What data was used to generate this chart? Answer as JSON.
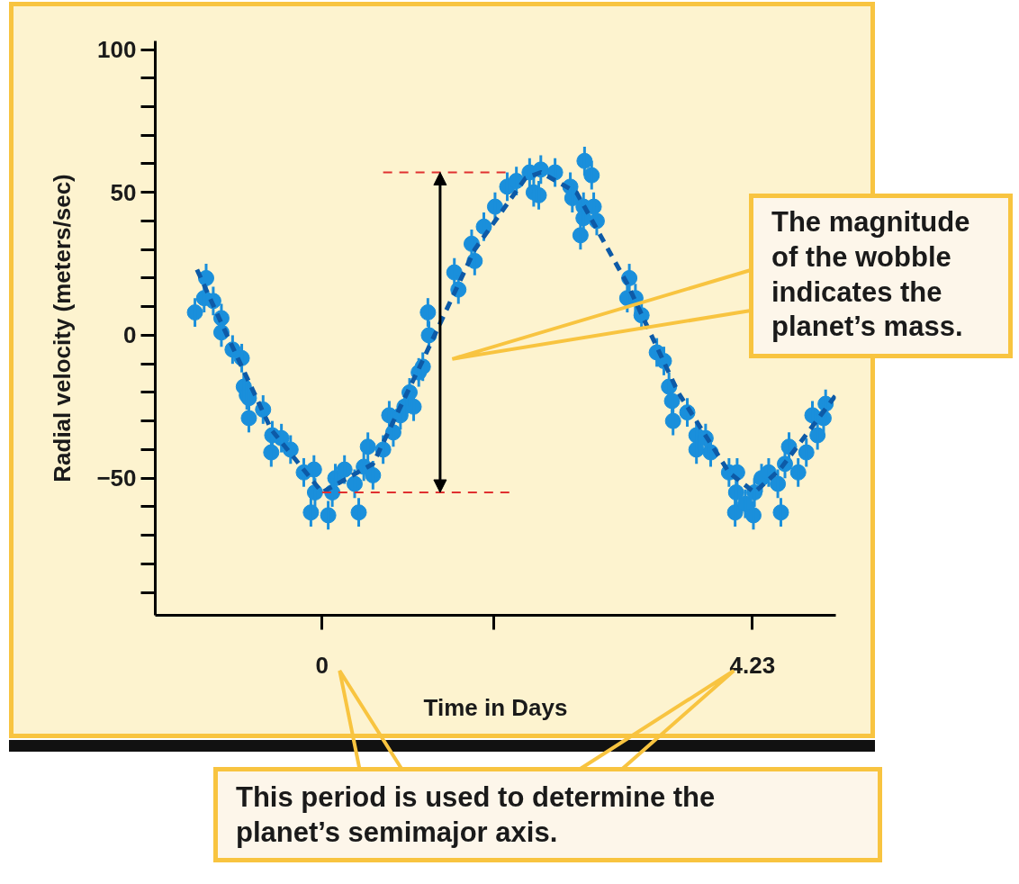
{
  "chart_data": {
    "type": "scatter",
    "xlabel": "Time in Days",
    "ylabel": "Radial velocity (meters/sec)",
    "xlim": [
      -1.64,
      5.05
    ],
    "ylim": [
      -98,
      103
    ],
    "xticks": [
      0,
      {
        "value": 1.69,
        "label": null
      },
      4.23
    ],
    "yticks": [
      100,
      {
        "value": 90,
        "label": null
      },
      {
        "value": 80,
        "label": null
      },
      {
        "value": 70,
        "label": null
      },
      {
        "value": 60,
        "label": null
      },
      50,
      {
        "value": 40,
        "label": null
      },
      {
        "value": 30,
        "label": null
      },
      {
        "value": 20,
        "label": null
      },
      {
        "value": 10,
        "label": null
      },
      0,
      {
        "value": -10,
        "label": null
      },
      {
        "value": -20,
        "label": null
      },
      {
        "value": -30,
        "label": null
      },
      {
        "value": -40,
        "label": null
      },
      {
        "value": -50,
        "label": "−50"
      },
      {
        "value": -60,
        "label": null
      },
      {
        "value": -70,
        "label": null
      },
      {
        "value": -80,
        "label": null
      },
      {
        "value": -90,
        "label": null
      }
    ],
    "grid": false,
    "series": [
      {
        "marker": "circle",
        "color": "#1a8fdb",
        "x": [
          -1.25,
          -1.16,
          -1.14,
          -1.07,
          -0.99,
          -0.99,
          -0.88,
          -0.79,
          -0.77,
          -0.74,
          -0.72,
          -0.72,
          -0.58,
          -0.5,
          -0.49,
          -0.4,
          -0.31,
          -0.18,
          -0.08,
          -0.07,
          -0.11,
          0.06,
          0.1,
          0.13,
          0.22,
          0.32,
          0.36,
          0.41,
          0.45,
          0.5,
          0.6,
          0.66,
          0.7,
          0.77,
          0.81,
          0.86,
          0.9,
          0.95,
          0.99,
          1.04,
          1.05,
          1.3,
          1.34,
          1.47,
          1.5,
          1.59,
          1.7,
          1.82,
          1.91,
          2.04,
          2.08,
          2.13,
          2.15,
          2.29,
          2.44,
          2.46,
          2.54,
          2.57,
          2.57,
          2.58,
          2.65,
          2.67,
          2.7,
          3.0,
          3.02,
          3.08,
          3.14,
          3.29,
          3.36,
          3.41,
          3.44,
          3.45,
          3.59,
          3.68,
          3.68,
          3.77,
          3.82,
          4.0,
          4.06,
          4.08,
          4.07,
          4.16,
          4.24,
          4.25,
          4.32,
          4.39,
          4.48,
          4.51,
          4.55,
          4.59,
          4.68,
          4.76,
          4.82,
          4.87,
          4.93,
          4.95
        ],
        "values": [
          8,
          13,
          20,
          12,
          6,
          1,
          -5,
          -8,
          -18,
          -21,
          -22,
          -29,
          -26,
          -41,
          -35,
          -36,
          -40,
          -48,
          -47,
          -55,
          -62,
          -63,
          -55,
          -50,
          -47,
          -52,
          -62,
          -46,
          -39,
          -49,
          -40,
          -28,
          -34,
          -28,
          -25,
          -20,
          -25,
          -13,
          -11,
          8,
          0,
          22,
          16,
          32,
          26,
          38,
          45,
          52,
          54,
          57,
          50,
          49,
          58,
          57,
          52,
          48,
          35,
          45,
          41,
          61,
          56,
          45,
          40,
          13,
          20,
          13,
          7,
          -6,
          -9,
          -18,
          -23,
          -30,
          -27,
          -35,
          -40,
          -36,
          -41,
          -48,
          -62,
          -48,
          -55,
          -59,
          -63,
          -55,
          -50,
          -48,
          -52,
          -62,
          -45,
          -39,
          -48,
          -41,
          -28,
          -35,
          -29,
          -24
        ],
        "errors": [
          5,
          5,
          5,
          5,
          5,
          5,
          5,
          5,
          5,
          5,
          5,
          5,
          5,
          5,
          5,
          5,
          5,
          5,
          5,
          5,
          5,
          5,
          5,
          5,
          5,
          5,
          5,
          5,
          5,
          5,
          5,
          5,
          5,
          5,
          5,
          5,
          5,
          5,
          5,
          5,
          5,
          5,
          5,
          5,
          5,
          5,
          5,
          5,
          5,
          5,
          5,
          5,
          5,
          5,
          5,
          5,
          5,
          5,
          5,
          5,
          5,
          5,
          5,
          5,
          5,
          5,
          5,
          5,
          5,
          5,
          5,
          5,
          5,
          5,
          5,
          5,
          5,
          5,
          5,
          5,
          5,
          5,
          5,
          5,
          5,
          5,
          5,
          5,
          5,
          5,
          5,
          5,
          5,
          5,
          5,
          5
        ]
      },
      {
        "type": "line",
        "line_style": "dashed",
        "color": "#0d5aa7",
        "x": [
          -1.23,
          -1.0,
          -0.5,
          0.0,
          0.5,
          1.0,
          1.5,
          2.0,
          2.15,
          2.5,
          3.0,
          3.5,
          4.0,
          4.25,
          4.5,
          5.05
        ],
        "values": [
          23,
          5,
          -33,
          -55,
          -45,
          -8,
          30,
          55,
          57,
          50,
          18,
          -20,
          -48,
          -55,
          -47,
          -21
        ]
      },
      {
        "type": "line",
        "line_style": "dashed",
        "color": "#e03030",
        "x": [
          0.6,
          1.82
        ],
        "values": [
          57,
          57
        ]
      },
      {
        "type": "line",
        "line_style": "dashed",
        "color": "#e03030",
        "x": [
          0.0,
          1.84
        ],
        "values": [
          -55,
          -55
        ]
      }
    ],
    "annotations": [
      "The magnitude of the wobble indicates the planet’s mass.",
      "This period is used to determine the planet’s semimajor axis."
    ]
  }
}
